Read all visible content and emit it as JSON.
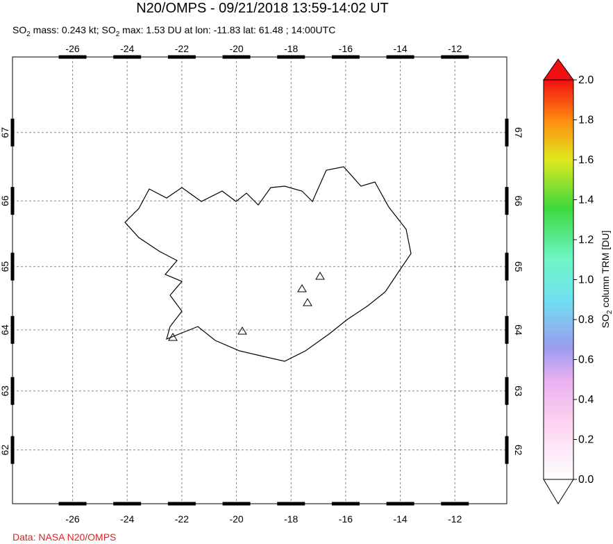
{
  "title": "N20/OMPS - 09/21/2018 13:59-14:02 UT",
  "subtitle": [
    "SO",
    "2",
    " mass: 0.243 kt; SO",
    "2",
    " max: 1.53 DU at lon: -11.83 lat: 61.48 ; 14:00UTC"
  ],
  "map": {
    "xlim": [
      -28.2,
      -10.1
    ],
    "ylim": [
      61.06,
      68.06
    ],
    "xticks": [
      -26,
      -24,
      -22,
      -20,
      -18,
      -16,
      -14,
      -12
    ],
    "yticks": [
      62,
      63,
      64,
      65,
      66,
      67
    ],
    "grid": true
  },
  "colorbar": {
    "label": [
      "SO",
      "2",
      " column TRM [DU]"
    ],
    "lim": [
      0,
      2
    ],
    "ticks": [
      {
        "value": 0,
        "label": "0.0"
      },
      {
        "value": 0.2,
        "label": "0.2"
      },
      {
        "value": 0.4,
        "label": "0.4"
      },
      {
        "value": 0.6,
        "label": "0.6"
      },
      {
        "value": 0.8,
        "label": "0.8"
      },
      {
        "value": 1,
        "label": "1.0"
      },
      {
        "value": 1.2,
        "label": "1.2"
      },
      {
        "value": 1.4,
        "label": "1.4"
      },
      {
        "value": 1.6,
        "label": "1.6"
      },
      {
        "value": 1.8,
        "label": "1.8"
      },
      {
        "value": 2,
        "label": "2.0"
      }
    ]
  },
  "source": "Data: NASA N20/OMPS"
}
